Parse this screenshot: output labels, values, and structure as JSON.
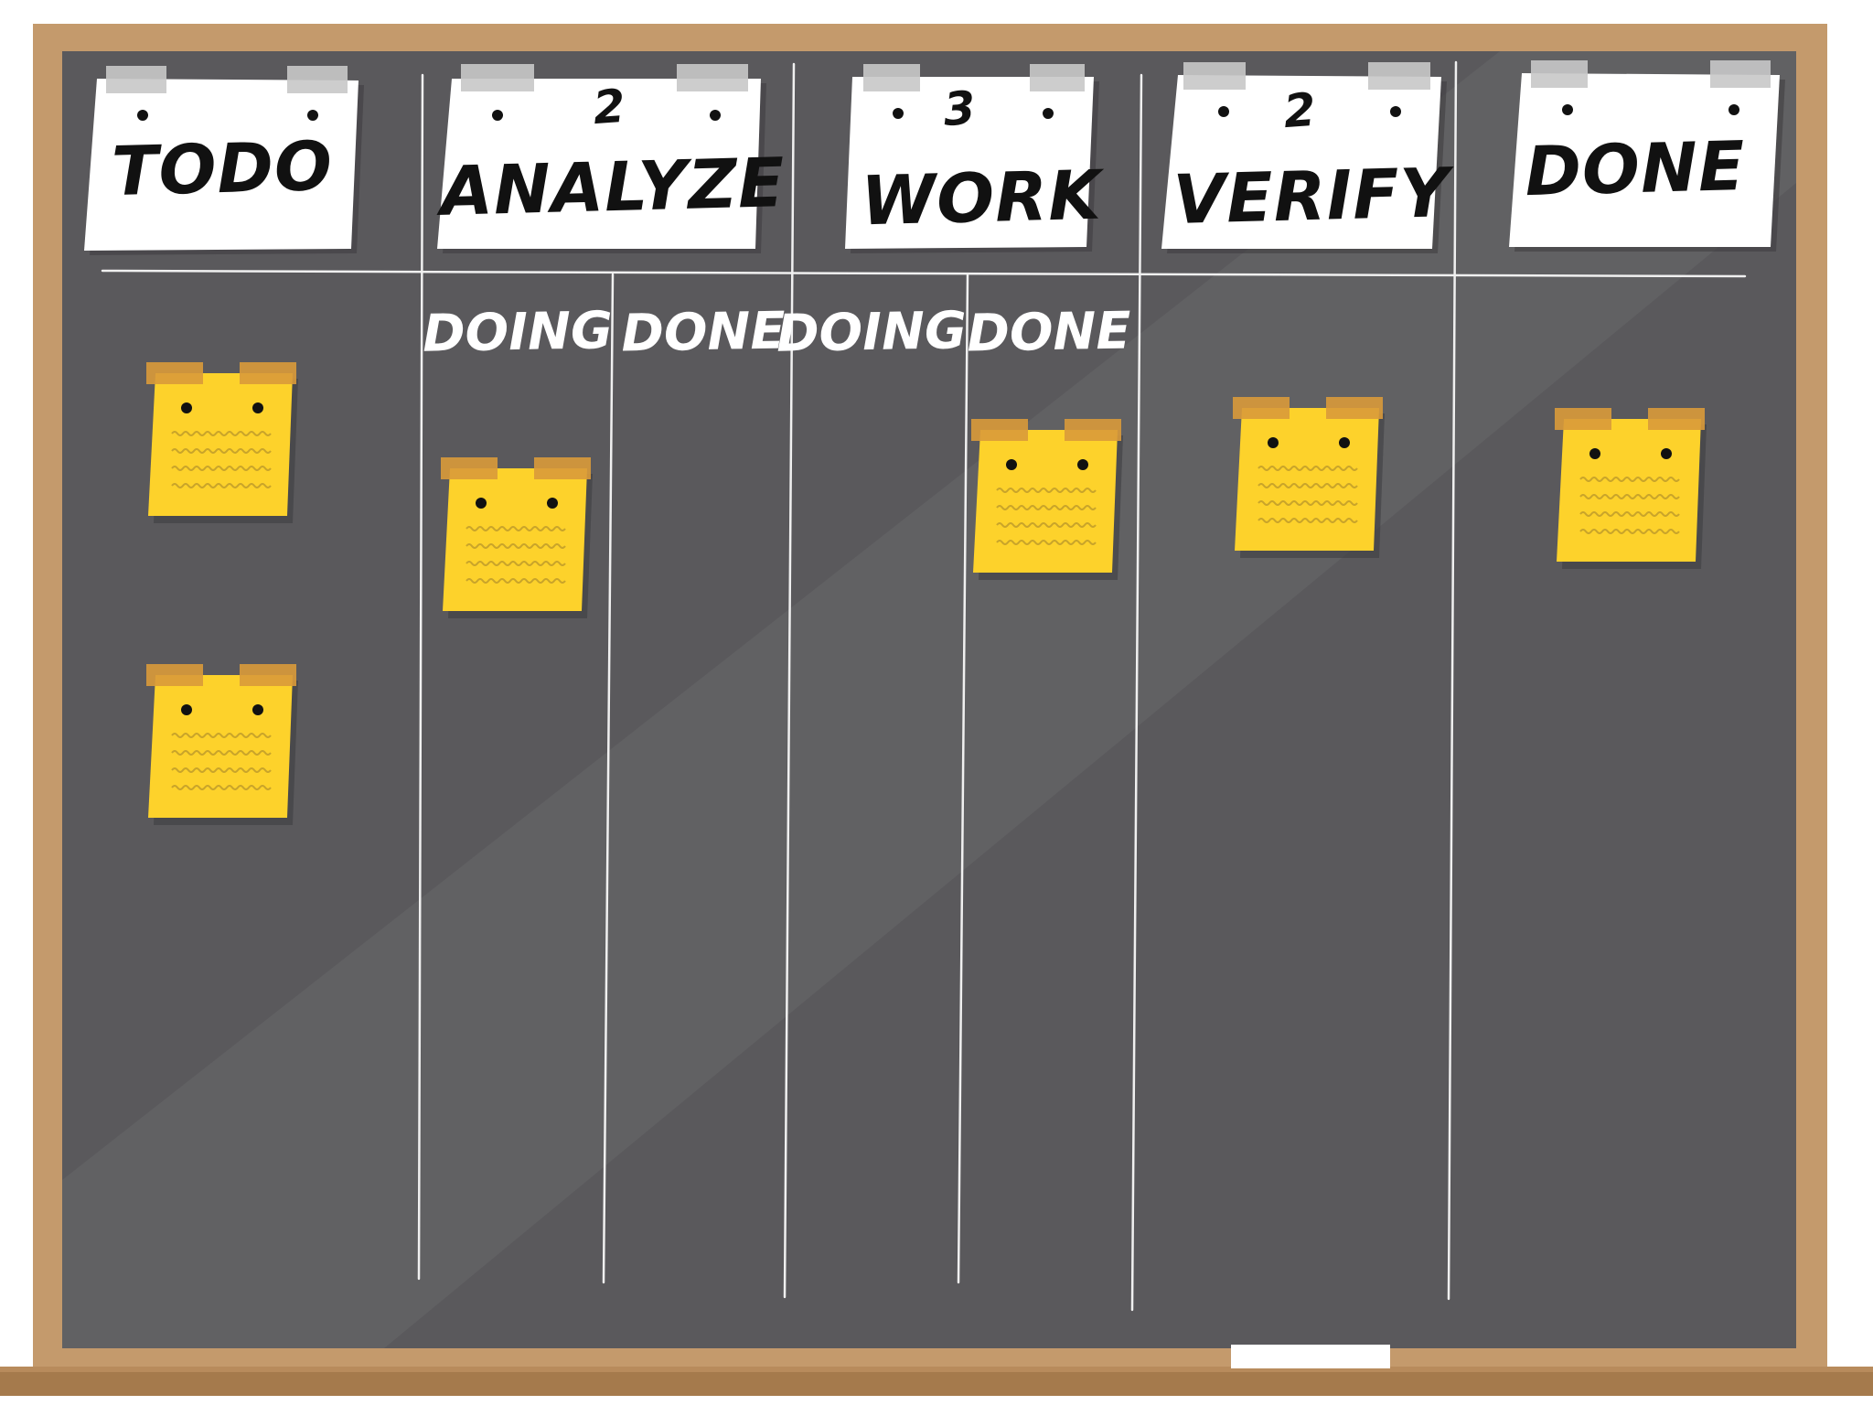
{
  "colors": {
    "frame": "#c49a6c",
    "frame_dark": "#a57a4c",
    "board": "#5a595c",
    "board_light": "#6a6a6d",
    "chalk": "#f0f0f0",
    "note_yellow": "#fdd22b",
    "note_tape": "#d99a3a",
    "paper": "#ffffff",
    "paper_tape": "#c8c8c8",
    "ink": "#111111"
  },
  "columns": [
    {
      "title": "TODO",
      "wip_limit": "",
      "sub": []
    },
    {
      "title": "ANALYZE",
      "wip_limit": "2",
      "sub": [
        "DOING",
        "DONE"
      ]
    },
    {
      "title": "WORK",
      "wip_limit": "3",
      "sub": [
        "DOING",
        "DONE"
      ]
    },
    {
      "title": "VERIFY",
      "wip_limit": "2",
      "sub": []
    },
    {
      "title": "DONE",
      "wip_limit": "",
      "sub": []
    }
  ],
  "sticky_notes": [
    {
      "column": "TODO",
      "lane": ""
    },
    {
      "column": "TODO",
      "lane": ""
    },
    {
      "column": "ANALYZE",
      "lane": "DOING"
    },
    {
      "column": "WORK",
      "lane": "DONE"
    },
    {
      "column": "VERIFY",
      "lane": ""
    },
    {
      "column": "DONE",
      "lane": ""
    }
  ],
  "icons": [
    "sticky-note-icon",
    "tape-icon",
    "chalk-icon",
    "pin-hole-icon"
  ]
}
